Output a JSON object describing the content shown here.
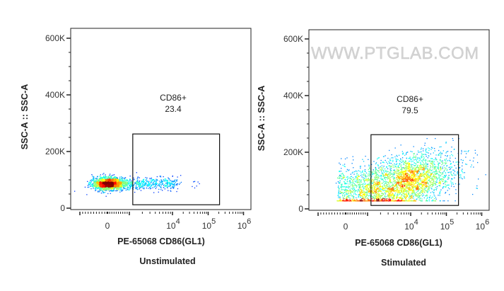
{
  "watermark": "WWW.PTGLAB.COM",
  "chart_data": [
    {
      "type": "scatter",
      "subtitle": "Unstimulated",
      "xlabel": "PE-65068 CD86(GL1)",
      "ylabel": "SSC-A :: SSC-A",
      "x_scale": "biexponential",
      "x_ticks": [
        {
          "label": "0",
          "base": "",
          "exp": "",
          "value": 0
        },
        {
          "label": "",
          "base": "10",
          "exp": "4",
          "value": 10000
        },
        {
          "label": "",
          "base": "10",
          "exp": "5",
          "value": 100000
        },
        {
          "label": "",
          "base": "10",
          "exp": "6",
          "value": 1000000
        }
      ],
      "y_ticks": [
        "0",
        "200K",
        "400K",
        "600K"
      ],
      "y_tick_values": [
        0,
        200000,
        400000,
        600000
      ],
      "ylim": [
        0,
        640000
      ],
      "density_coloring": true,
      "populations": [
        {
          "x_median": 0,
          "y_median": 88000,
          "weight": 0.72
        },
        {
          "x_median": 3000,
          "y_median": 90000,
          "weight": 0.28
        }
      ],
      "gate": {
        "name": "CD86+",
        "value": "23.4",
        "x_range": [
          1200,
          210000
        ],
        "y_range": [
          12000,
          262000
        ]
      }
    },
    {
      "type": "scatter",
      "subtitle": "Stimulated",
      "xlabel": "PE-65068 CD86(GL1)",
      "ylabel": "SSC-A :: SSC-A",
      "x_scale": "biexponential",
      "x_ticks": [
        {
          "label": "0",
          "base": "",
          "exp": "",
          "value": 0
        },
        {
          "label": "",
          "base": "10",
          "exp": "4",
          "value": 10000
        },
        {
          "label": "",
          "base": "10",
          "exp": "5",
          "value": 100000
        },
        {
          "label": "",
          "base": "10",
          "exp": "6",
          "value": 1000000
        }
      ],
      "y_ticks": [
        "0",
        "200K",
        "400K",
        "600K"
      ],
      "y_tick_values": [
        0,
        200000,
        400000,
        600000
      ],
      "ylim": [
        0,
        640000
      ],
      "density_coloring": true,
      "populations": [
        {
          "x_median": 8000,
          "y_median": 110000,
          "weight": 0.8
        },
        {
          "x_median": 200,
          "y_median": 75000,
          "weight": 0.2
        }
      ],
      "gate": {
        "name": "CD86+",
        "value": "79.5",
        "x_range": [
          1200,
          220000
        ],
        "y_range": [
          12000,
          262000
        ]
      }
    }
  ]
}
